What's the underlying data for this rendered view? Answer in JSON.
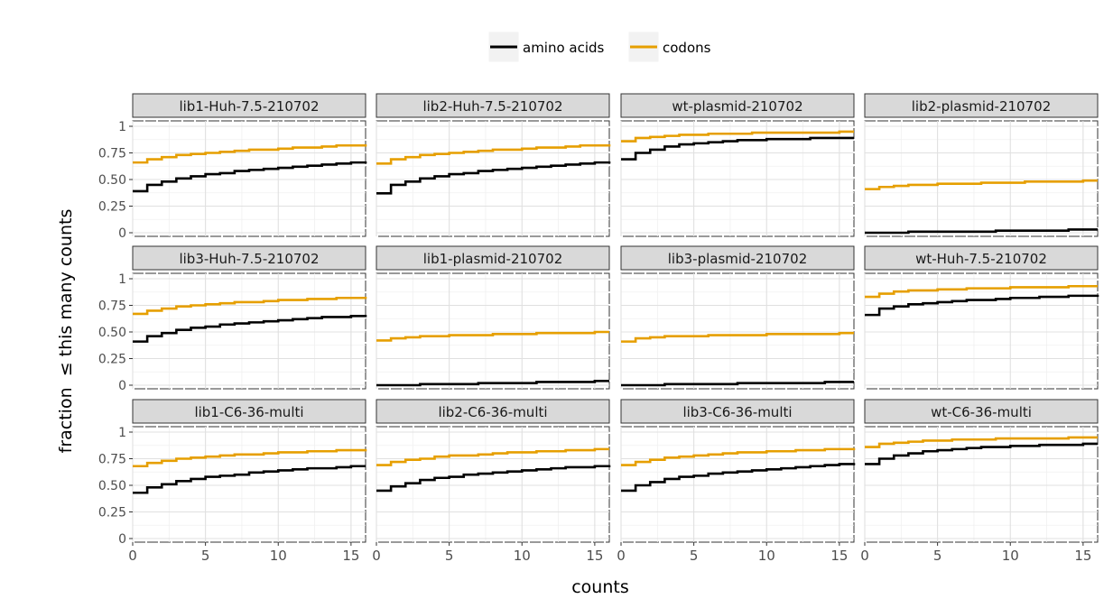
{
  "chart_data": {
    "type": "line",
    "step": true,
    "facet_layout": "3x4 grid",
    "xlabel": "counts",
    "ylabel": "fraction  ≤ this many counts",
    "xlim": [
      0,
      16
    ],
    "ylim": [
      0,
      1
    ],
    "x_ticks": [
      0,
      5,
      10,
      15
    ],
    "y_ticks": [
      0,
      0.25,
      0.5,
      0.75,
      1
    ],
    "y_tick_labels": [
      "0",
      "0.25",
      "0.50",
      "0.75",
      "1"
    ],
    "grid": true,
    "legend_position": "top",
    "legend": [
      {
        "name": "amino acids",
        "color": "#000000"
      },
      {
        "name": "codons",
        "color": "#E69F00"
      }
    ],
    "x": [
      0,
      1,
      2,
      3,
      4,
      5,
      6,
      7,
      8,
      9,
      10,
      11,
      12,
      13,
      14,
      15,
      16
    ],
    "panels": [
      {
        "title": "lib1-Huh-7.5-210702",
        "series": [
          {
            "name": "amino acids",
            "values": [
              0.39,
              0.45,
              0.48,
              0.51,
              0.53,
              0.55,
              0.56,
              0.58,
              0.59,
              0.6,
              0.61,
              0.62,
              0.63,
              0.64,
              0.65,
              0.66,
              0.67
            ]
          },
          {
            "name": "codons",
            "values": [
              0.66,
              0.69,
              0.71,
              0.73,
              0.74,
              0.75,
              0.76,
              0.77,
              0.78,
              0.78,
              0.79,
              0.8,
              0.8,
              0.81,
              0.82,
              0.82,
              0.83
            ]
          }
        ]
      },
      {
        "title": "lib2-Huh-7.5-210702",
        "series": [
          {
            "name": "amino acids",
            "values": [
              0.37,
              0.45,
              0.48,
              0.51,
              0.53,
              0.55,
              0.56,
              0.58,
              0.59,
              0.6,
              0.61,
              0.62,
              0.63,
              0.64,
              0.65,
              0.66,
              0.67
            ]
          },
          {
            "name": "codons",
            "values": [
              0.65,
              0.69,
              0.71,
              0.73,
              0.74,
              0.75,
              0.76,
              0.77,
              0.78,
              0.78,
              0.79,
              0.8,
              0.8,
              0.81,
              0.82,
              0.82,
              0.83
            ]
          }
        ]
      },
      {
        "title": "wt-plasmid-210702",
        "series": [
          {
            "name": "amino acids",
            "values": [
              0.69,
              0.75,
              0.78,
              0.81,
              0.83,
              0.84,
              0.85,
              0.86,
              0.87,
              0.87,
              0.88,
              0.88,
              0.88,
              0.89,
              0.89,
              0.89,
              0.89
            ]
          },
          {
            "name": "codons",
            "values": [
              0.86,
              0.89,
              0.9,
              0.91,
              0.92,
              0.92,
              0.93,
              0.93,
              0.93,
              0.94,
              0.94,
              0.94,
              0.94,
              0.94,
              0.94,
              0.95,
              0.95
            ]
          }
        ]
      },
      {
        "title": "lib2-plasmid-210702",
        "series": [
          {
            "name": "amino acids",
            "values": [
              0.0,
              0.0,
              0.0,
              0.01,
              0.01,
              0.01,
              0.01,
              0.01,
              0.01,
              0.02,
              0.02,
              0.02,
              0.02,
              0.02,
              0.03,
              0.03,
              0.03
            ]
          },
          {
            "name": "codons",
            "values": [
              0.41,
              0.43,
              0.44,
              0.45,
              0.45,
              0.46,
              0.46,
              0.46,
              0.47,
              0.47,
              0.47,
              0.48,
              0.48,
              0.48,
              0.48,
              0.49,
              0.49
            ]
          }
        ]
      },
      {
        "title": "lib3-Huh-7.5-210702",
        "series": [
          {
            "name": "amino acids",
            "values": [
              0.41,
              0.46,
              0.49,
              0.52,
              0.54,
              0.55,
              0.57,
              0.58,
              0.59,
              0.6,
              0.61,
              0.62,
              0.63,
              0.64,
              0.64,
              0.65,
              0.66
            ]
          },
          {
            "name": "codons",
            "values": [
              0.67,
              0.7,
              0.72,
              0.74,
              0.75,
              0.76,
              0.77,
              0.78,
              0.78,
              0.79,
              0.8,
              0.8,
              0.81,
              0.81,
              0.82,
              0.82,
              0.83
            ]
          }
        ]
      },
      {
        "title": "lib1-plasmid-210702",
        "series": [
          {
            "name": "amino acids",
            "values": [
              0.0,
              0.0,
              0.0,
              0.01,
              0.01,
              0.01,
              0.01,
              0.02,
              0.02,
              0.02,
              0.02,
              0.03,
              0.03,
              0.03,
              0.03,
              0.04,
              0.04
            ]
          },
          {
            "name": "codons",
            "values": [
              0.42,
              0.44,
              0.45,
              0.46,
              0.46,
              0.47,
              0.47,
              0.47,
              0.48,
              0.48,
              0.48,
              0.49,
              0.49,
              0.49,
              0.49,
              0.5,
              0.5
            ]
          }
        ]
      },
      {
        "title": "lib3-plasmid-210702",
        "series": [
          {
            "name": "amino acids",
            "values": [
              0.0,
              0.0,
              0.0,
              0.01,
              0.01,
              0.01,
              0.01,
              0.01,
              0.02,
              0.02,
              0.02,
              0.02,
              0.02,
              0.02,
              0.03,
              0.03,
              0.03
            ]
          },
          {
            "name": "codons",
            "values": [
              0.41,
              0.44,
              0.45,
              0.46,
              0.46,
              0.46,
              0.47,
              0.47,
              0.47,
              0.47,
              0.48,
              0.48,
              0.48,
              0.48,
              0.48,
              0.49,
              0.49
            ]
          }
        ]
      },
      {
        "title": "wt-Huh-7.5-210702",
        "series": [
          {
            "name": "amino acids",
            "values": [
              0.66,
              0.72,
              0.74,
              0.76,
              0.77,
              0.78,
              0.79,
              0.8,
              0.8,
              0.81,
              0.82,
              0.82,
              0.83,
              0.83,
              0.84,
              0.84,
              0.85
            ]
          },
          {
            "name": "codons",
            "values": [
              0.83,
              0.86,
              0.88,
              0.89,
              0.89,
              0.9,
              0.9,
              0.91,
              0.91,
              0.91,
              0.92,
              0.92,
              0.92,
              0.92,
              0.93,
              0.93,
              0.93
            ]
          }
        ]
      },
      {
        "title": "lib1-C6-36-multi",
        "series": [
          {
            "name": "amino acids",
            "values": [
              0.43,
              0.48,
              0.51,
              0.54,
              0.56,
              0.58,
              0.59,
              0.6,
              0.62,
              0.63,
              0.64,
              0.65,
              0.66,
              0.66,
              0.67,
              0.68,
              0.68
            ]
          },
          {
            "name": "codons",
            "values": [
              0.68,
              0.71,
              0.73,
              0.75,
              0.76,
              0.77,
              0.78,
              0.79,
              0.79,
              0.8,
              0.81,
              0.81,
              0.82,
              0.82,
              0.83,
              0.83,
              0.84
            ]
          }
        ]
      },
      {
        "title": "lib2-C6-36-multi",
        "series": [
          {
            "name": "amino acids",
            "values": [
              0.45,
              0.49,
              0.52,
              0.55,
              0.57,
              0.58,
              0.6,
              0.61,
              0.62,
              0.63,
              0.64,
              0.65,
              0.66,
              0.67,
              0.67,
              0.68,
              0.69
            ]
          },
          {
            "name": "codons",
            "values": [
              0.69,
              0.72,
              0.74,
              0.75,
              0.77,
              0.78,
              0.78,
              0.79,
              0.8,
              0.81,
              0.81,
              0.82,
              0.82,
              0.83,
              0.83,
              0.84,
              0.84
            ]
          }
        ]
      },
      {
        "title": "lib3-C6-36-multi",
        "series": [
          {
            "name": "amino acids",
            "values": [
              0.45,
              0.5,
              0.53,
              0.56,
              0.58,
              0.59,
              0.61,
              0.62,
              0.63,
              0.64,
              0.65,
              0.66,
              0.67,
              0.68,
              0.69,
              0.7,
              0.71
            ]
          },
          {
            "name": "codons",
            "values": [
              0.69,
              0.72,
              0.74,
              0.76,
              0.77,
              0.78,
              0.79,
              0.8,
              0.81,
              0.81,
              0.82,
              0.82,
              0.83,
              0.83,
              0.84,
              0.84,
              0.85
            ]
          }
        ]
      },
      {
        "title": "wt-C6-36-multi",
        "series": [
          {
            "name": "amino acids",
            "values": [
              0.7,
              0.75,
              0.78,
              0.8,
              0.82,
              0.83,
              0.84,
              0.85,
              0.86,
              0.86,
              0.87,
              0.87,
              0.88,
              0.88,
              0.88,
              0.89,
              0.89
            ]
          },
          {
            "name": "codons",
            "values": [
              0.86,
              0.89,
              0.9,
              0.91,
              0.92,
              0.92,
              0.93,
              0.93,
              0.93,
              0.94,
              0.94,
              0.94,
              0.94,
              0.94,
              0.95,
              0.95,
              0.95
            ]
          }
        ]
      }
    ]
  }
}
